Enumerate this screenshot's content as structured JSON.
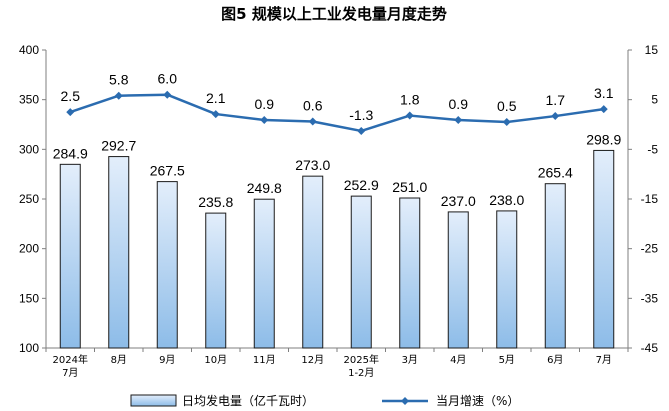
{
  "chart_data": {
    "type": "bar+line",
    "title": "图5  规模以上工业发电量月度走势",
    "categories": [
      [
        "2024年",
        "7月"
      ],
      [
        "8月"
      ],
      [
        "9月"
      ],
      [
        "10月"
      ],
      [
        "11月"
      ],
      [
        "12月"
      ],
      [
        "2025年",
        "1-2月"
      ],
      [
        "3月"
      ],
      [
        "4月"
      ],
      [
        "5月"
      ],
      [
        "6月"
      ],
      [
        "7月"
      ]
    ],
    "bar_series": {
      "name": "日均发电量（亿千瓦时）",
      "values": [
        284.9,
        292.7,
        267.5,
        235.8,
        249.8,
        273.0,
        252.9,
        251.0,
        237.0,
        238.0,
        265.4,
        298.9
      ],
      "labels": [
        "284.9",
        "292.7",
        "267.5",
        "235.8",
        "249.8",
        "273.0",
        "252.9",
        "251.0",
        "237.0",
        "238.0",
        "265.4",
        "298.9"
      ]
    },
    "line_series": {
      "name": "当月增速（%）",
      "values": [
        2.5,
        5.8,
        6.0,
        2.1,
        0.9,
        0.6,
        -1.3,
        1.8,
        0.9,
        0.5,
        1.7,
        3.1
      ],
      "labels": [
        "2.5",
        "5.8",
        "6.0",
        "2.1",
        "0.9",
        "0.6",
        "-1.3",
        "1.8",
        "0.9",
        "0.5",
        "1.7",
        "3.1"
      ]
    },
    "y_left": {
      "range": [
        100,
        400
      ],
      "ticks": [
        "100",
        "150",
        "200",
        "250",
        "300",
        "350",
        "400"
      ]
    },
    "y_right": {
      "range": [
        -45,
        15
      ],
      "ticks": [
        "-45",
        "-35",
        "-25",
        "-15",
        "-5",
        "5",
        "15"
      ]
    },
    "grid": false,
    "legend_position": "bottom",
    "colors": {
      "bar_top": "#e3eefb",
      "bar_bottom": "#8dbce8",
      "bar_stroke": "#1a1a1a",
      "line": "#2b6cb0",
      "axis": "#7f7f7f"
    }
  }
}
